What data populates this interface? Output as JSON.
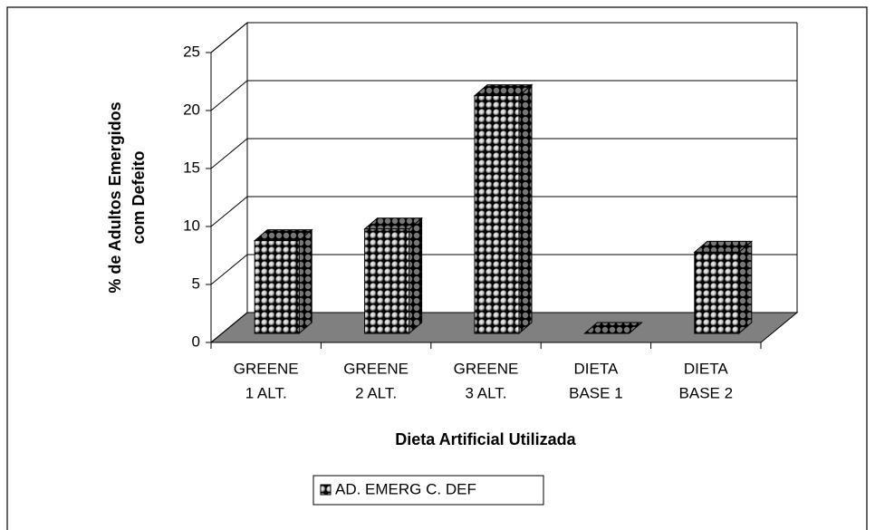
{
  "chart_data": {
    "type": "bar3d",
    "categories": [
      [
        "GREENE",
        "1 ALT."
      ],
      [
        "GREENE",
        "2 ALT."
      ],
      [
        "GREENE",
        "3 ALT."
      ],
      [
        "DIETA",
        "BASE 1"
      ],
      [
        "DIETA",
        "BASE 2"
      ]
    ],
    "series": [
      {
        "name": "AD. EMERG C. DEF",
        "values": [
          8,
          9,
          20.5,
          0,
          7
        ]
      }
    ],
    "x_label": "Dieta Artificial Utilizada",
    "y_label": [
      "% de Adultos Emergidos",
      "com Defeito"
    ],
    "ylim": [
      0,
      25
    ],
    "yticks": [
      0,
      5,
      10,
      15,
      20,
      25
    ],
    "grid": true,
    "floor_color": "#808080",
    "legend": "bottom"
  }
}
